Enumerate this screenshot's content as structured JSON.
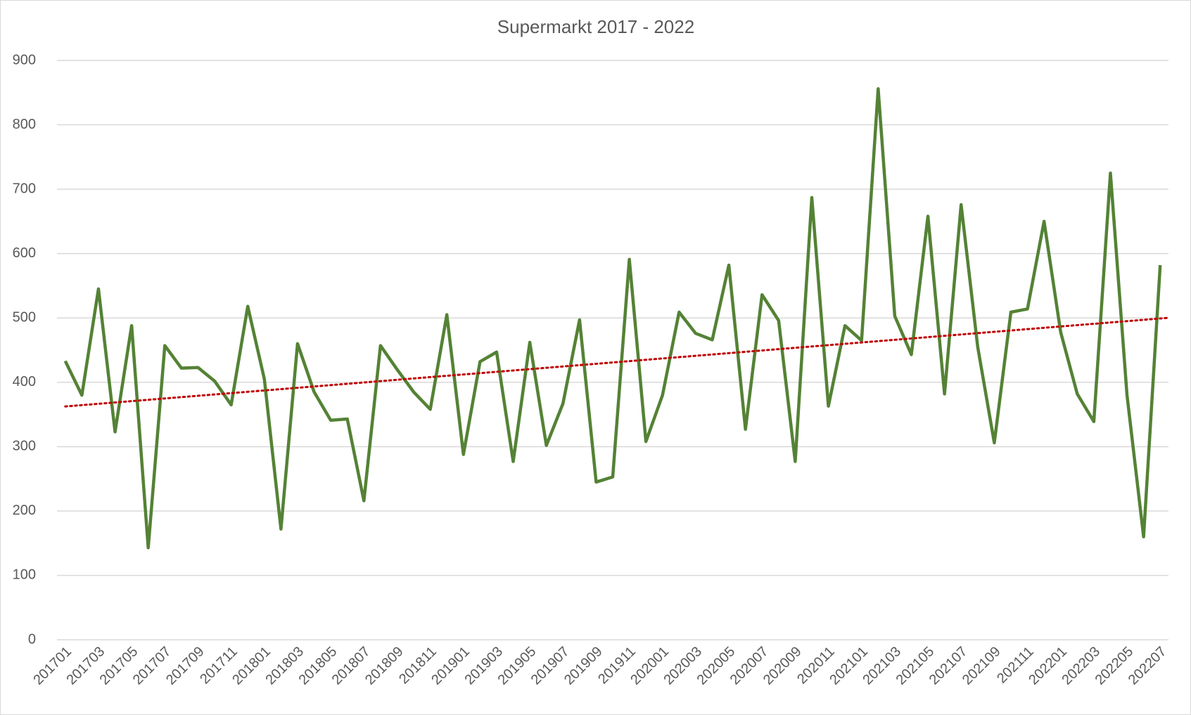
{
  "chart_data": {
    "type": "line",
    "title": "Supermarkt 2017 - 2022",
    "categories": [
      "201701",
      null,
      "201703",
      null,
      "201705",
      null,
      "201707",
      null,
      "201709",
      null,
      "201711",
      null,
      "201801",
      null,
      "201803",
      null,
      "201805",
      null,
      "201807",
      null,
      "201809",
      null,
      "201811",
      null,
      "201901",
      null,
      "201903",
      null,
      "201905",
      null,
      "201907",
      null,
      "201909",
      null,
      "201911",
      null,
      "202001",
      null,
      "202003",
      null,
      "202005",
      null,
      "202007",
      null,
      "202009",
      null,
      "202011",
      null,
      "202101",
      null,
      "202103",
      null,
      "202105",
      null,
      "202107",
      null,
      "202109",
      null,
      "202111",
      null,
      "202201",
      null,
      "202203",
      null,
      "202205",
      null,
      "202207"
    ],
    "series": [
      {
        "color": "#548235",
        "values": [
          433,
          380,
          545,
          323,
          488,
          143,
          457,
          422,
          423,
          402,
          365,
          518,
          405,
          172,
          460,
          385,
          341,
          343,
          216,
          457,
          420,
          385,
          358,
          505,
          288,
          432,
          447,
          277,
          462,
          302,
          367,
          497,
          245,
          253,
          591,
          308,
          380,
          509,
          476,
          466,
          582,
          327,
          536,
          496,
          277,
          687,
          363,
          488,
          465,
          856,
          503,
          443,
          658,
          382,
          676,
          455,
          306,
          509,
          514,
          650,
          478,
          382,
          339,
          725,
          380,
          160,
          582
        ]
      }
    ],
    "trendline": {
      "type": "linear",
      "color": "#c00000"
    },
    "ylim": [
      0,
      900
    ],
    "yticks": [
      0,
      100,
      200,
      300,
      400,
      500,
      600,
      700,
      800,
      900
    ],
    "grid": true
  }
}
